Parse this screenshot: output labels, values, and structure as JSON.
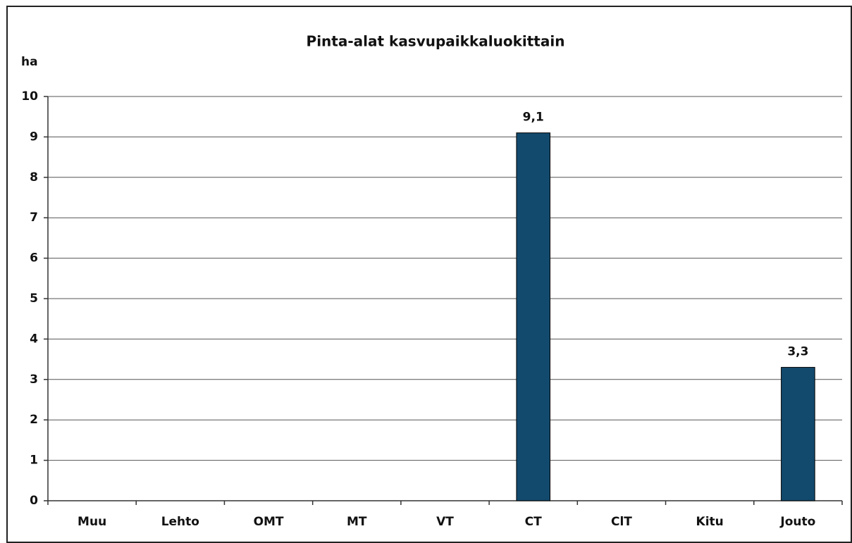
{
  "chart_data": {
    "type": "bar",
    "title": "Pinta-alat kasvupaikkaluokittain",
    "y_label": "ha",
    "categories": [
      "Muu",
      "Lehto",
      "OMT",
      "MT",
      "VT",
      "CT",
      "ClT",
      "Kitu",
      "Jouto"
    ],
    "values": [
      0,
      0,
      0,
      0,
      0,
      9.1,
      0,
      0,
      3.3
    ],
    "value_labels": [
      null,
      null,
      null,
      null,
      null,
      "9,1",
      null,
      null,
      "3,3"
    ],
    "color": "#124a6e",
    "ylim": [
      0,
      10
    ],
    "yticks": [
      0,
      1,
      2,
      3,
      4,
      5,
      6,
      7,
      8,
      9,
      10
    ],
    "grid": true
  }
}
